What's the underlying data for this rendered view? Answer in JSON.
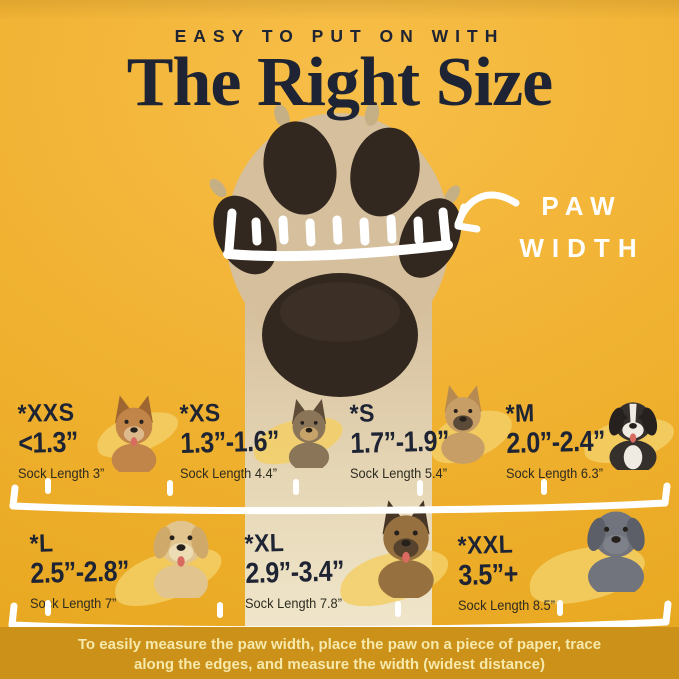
{
  "page": {
    "eyebrow": "EASY TO PUT ON WITH",
    "title": "The Right Size",
    "paw_label_line1": "PAW",
    "paw_label_line2": "WIDTH",
    "footer_line1": "To easily measure the paw width, place the paw on a piece of paper, trace",
    "footer_line2": "along the edges, and measure the width (widest distance)"
  },
  "colors": {
    "bg_top": "#F7BE48",
    "bg_mid": "#F1B232",
    "bg_edge": "#E7A71F",
    "ink": "#1E2433",
    "white": "#FFFFFF",
    "band": "#CB9118",
    "band_text": "#F6E9AC",
    "brush": "#F3CF66",
    "paw_fur": "#D5BF9D",
    "paw_pad": "#33281F"
  },
  "icons": {
    "paw_photo": "upside-down dog paw photo with white hand-drawn measuring ruler",
    "arrow": "hand-drawn curved white arrow pointing at paw",
    "divider": "hand-drawn white ruler line with tick marks"
  },
  "sizes": [
    {
      "size": "*XXS",
      "range": "<1.3”",
      "sock_length": "Sock Length 3”",
      "dog": {
        "breed": "chihuahua",
        "ears": "up",
        "coat": "#C1854A",
        "ear": "#9E6630",
        "muzzle": "#DDBA8C",
        "tongue": true
      }
    },
    {
      "size": "*XS",
      "range": "1.3”-1.6”",
      "sock_length": "Sock Length 4.4”",
      "dog": {
        "breed": "yorkie-puppy",
        "ears": "up",
        "coat": "#8A7558",
        "ear": "#5F4C38",
        "muzzle": "#C7A369"
      }
    },
    {
      "size": "*S",
      "range": "1.7”-1.9”",
      "sock_length": "Sock Length 5.4”",
      "dog": {
        "breed": "french-bulldog",
        "ears": "up",
        "coat": "#C79E66",
        "ear": "#B68A50",
        "muzzle": "#5C4A39"
      }
    },
    {
      "size": "*M",
      "range": "2.0”-2.4”",
      "sock_length": "Sock Length 6.3”",
      "dog": {
        "breed": "australian-shepherd",
        "ears": "down",
        "coat": "#35302C",
        "ear": "#26211E",
        "muzzle": "#EFEAE2",
        "blaze": "#EFEAE2",
        "tongue": true
      }
    },
    {
      "size": "*L",
      "range": "2.5”-2.8”",
      "sock_length": "Sock Length 7”",
      "dog": {
        "breed": "golden-retriever",
        "ears": "down",
        "coat": "#E2C48E",
        "ear": "#CFA96A",
        "muzzle": "#EDDDB4",
        "tongue": true
      }
    },
    {
      "size": "*XL",
      "range": "2.9”-3.4”",
      "sock_length": "Sock Length 7.8”",
      "dog": {
        "breed": "german-shepherd",
        "ears": "up",
        "coat": "#96713F",
        "ear": "#473525",
        "muzzle": "#57432D",
        "tongue": true
      }
    },
    {
      "size": "*XXL",
      "range": "3.5”+",
      "sock_length": "Sock Length 8.5”",
      "dog": {
        "breed": "great-dane",
        "ears": "down",
        "coat": "#71747C",
        "ear": "#5C5F67",
        "muzzle": "#7E818A"
      }
    }
  ]
}
